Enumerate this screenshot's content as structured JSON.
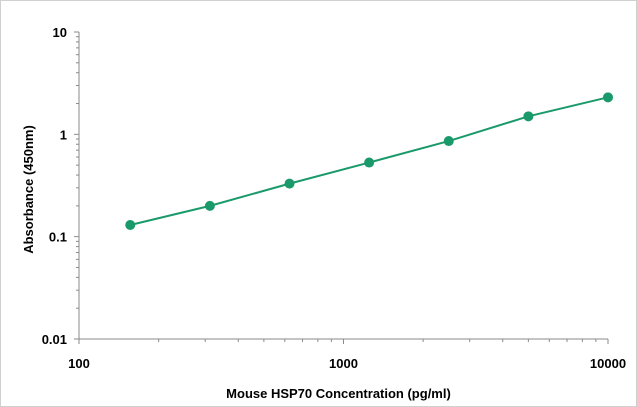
{
  "chart_data": {
    "type": "line",
    "title": "",
    "xlabel": "Mouse HSP70 Concentration (pg/ml)",
    "ylabel": "Absorbance (450nm)",
    "x_scale": "log",
    "y_scale": "log",
    "xlim": [
      100,
      10000
    ],
    "ylim": [
      0.01,
      10
    ],
    "x_ticks": [
      {
        "value": 100,
        "label": "100"
      },
      {
        "value": 1000,
        "label": "1000"
      },
      {
        "value": 10000,
        "label": "10000"
      }
    ],
    "y_ticks": [
      {
        "value": 0.01,
        "label": "0.01"
      },
      {
        "value": 0.1,
        "label": "0.1"
      },
      {
        "value": 1,
        "label": "1"
      },
      {
        "value": 10,
        "label": "10"
      }
    ],
    "grid": false,
    "legend": "none",
    "series": [
      {
        "color": "#1a9a6a",
        "x": [
          156.25,
          312.5,
          625,
          1250,
          2500,
          5000,
          10000
        ],
        "y": [
          0.13,
          0.2,
          0.33,
          0.53,
          0.86,
          1.5,
          2.3
        ]
      }
    ]
  }
}
